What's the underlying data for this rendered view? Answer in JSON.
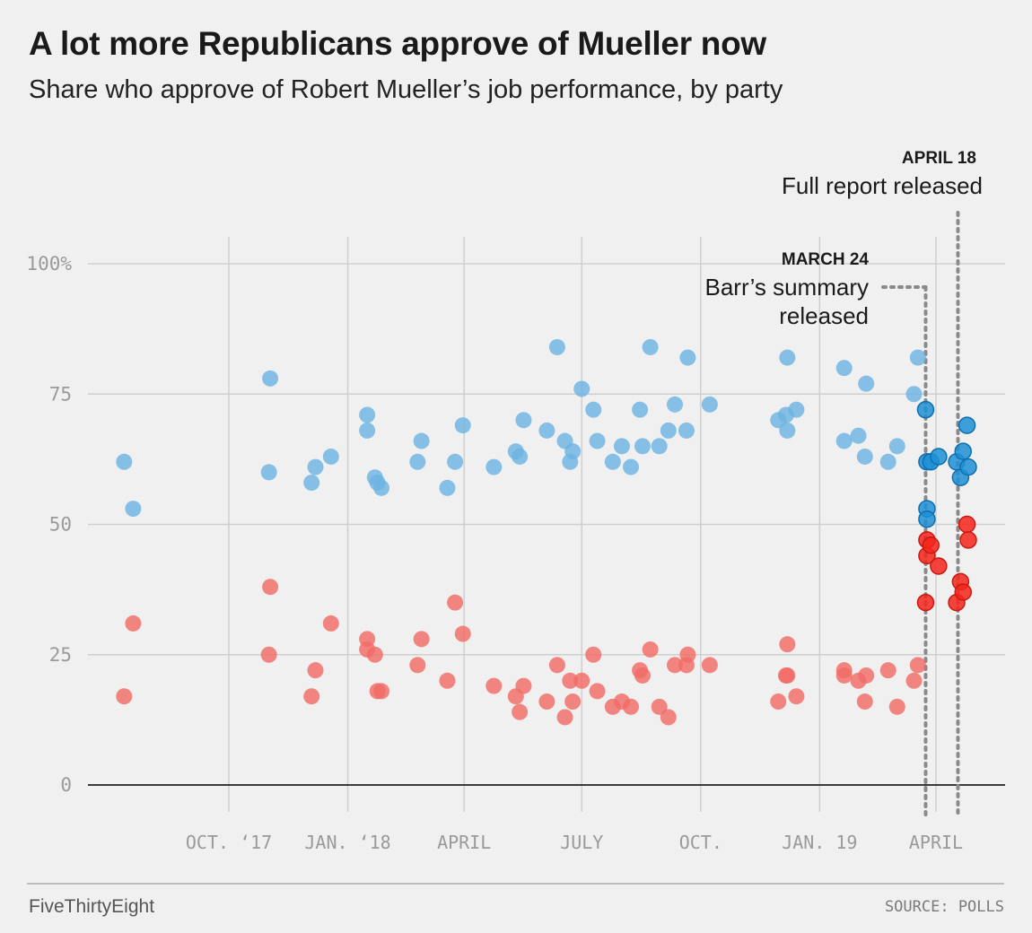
{
  "title": "A lot more Republicans approve of Mueller now",
  "subtitle": "Share who approve of Robert Mueller’s job performance, by party",
  "footer": {
    "brand": "FiveThirtyEight",
    "source": "SOURCE: POLLS"
  },
  "colors": {
    "dem_light": "#6cb3e2",
    "dem_dark": "#1d8fd6",
    "dem_dark_stroke": "#0f6fae",
    "rep_light": "#f26b66",
    "rep_dark": "#f5251b",
    "rep_dark_stroke": "#c81a12",
    "grid": "#cfcfcf",
    "baseline": "#222222",
    "annotation_line": "#8a8a8a"
  },
  "chart_data": {
    "type": "scatter",
    "x_unit": "date",
    "xlim": [
      "2017-06-20",
      "2019-05-15"
    ],
    "ylim": [
      0,
      100
    ],
    "y_ticks": [
      {
        "value": 0,
        "label": "0"
      },
      {
        "value": 25,
        "label": "25"
      },
      {
        "value": 50,
        "label": "50"
      },
      {
        "value": 75,
        "label": "75"
      },
      {
        "value": 100,
        "label": "100%"
      }
    ],
    "x_ticks": [
      {
        "date": "2017-10-01",
        "label": "OCT. ‘17"
      },
      {
        "date": "2018-01-01",
        "label": "JAN. ‘18"
      },
      {
        "date": "2018-04-01",
        "label": "APRIL"
      },
      {
        "date": "2018-07-01",
        "label": "JULY"
      },
      {
        "date": "2018-10-01",
        "label": "OCT."
      },
      {
        "date": "2019-01-01",
        "label": "JAN. 19"
      },
      {
        "date": "2019-04-01",
        "label": "APRIL"
      }
    ],
    "grid": true,
    "annotations": [
      {
        "date": "2019-03-24",
        "label_date": "MARCH 24",
        "label_lines": [
          "Barr’s summary",
          "released"
        ]
      },
      {
        "date": "2019-04-18",
        "label_date": "APRIL 18",
        "label_lines": [
          "Full report released"
        ]
      }
    ],
    "series": [
      {
        "party": "dem",
        "shade": "light",
        "points": [
          [
            "2017-07-12",
            62
          ],
          [
            "2017-07-19",
            53
          ],
          [
            "2017-11-01",
            60
          ],
          [
            "2017-11-02",
            78
          ],
          [
            "2017-12-04",
            58
          ],
          [
            "2017-12-07",
            61
          ],
          [
            "2017-12-19",
            63
          ],
          [
            "2018-01-16",
            71
          ],
          [
            "2018-01-16",
            68
          ],
          [
            "2018-01-22",
            59
          ],
          [
            "2018-01-24",
            58
          ],
          [
            "2018-01-27",
            57
          ],
          [
            "2018-02-24",
            62
          ],
          [
            "2018-02-27",
            66
          ],
          [
            "2018-03-19",
            57
          ],
          [
            "2018-03-25",
            62
          ],
          [
            "2018-03-31",
            69
          ],
          [
            "2018-04-24",
            61
          ],
          [
            "2018-05-11",
            64
          ],
          [
            "2018-05-14",
            63
          ],
          [
            "2018-05-17",
            70
          ],
          [
            "2018-06-04",
            68
          ],
          [
            "2018-06-12",
            84
          ],
          [
            "2018-06-18",
            66
          ],
          [
            "2018-06-22",
            62
          ],
          [
            "2018-06-24",
            64
          ],
          [
            "2018-07-01",
            76
          ],
          [
            "2018-07-10",
            72
          ],
          [
            "2018-07-13",
            66
          ],
          [
            "2018-07-25",
            62
          ],
          [
            "2018-08-01",
            65
          ],
          [
            "2018-08-08",
            61
          ],
          [
            "2018-08-15",
            72
          ],
          [
            "2018-08-17",
            65
          ],
          [
            "2018-08-23",
            84
          ],
          [
            "2018-08-30",
            65
          ],
          [
            "2018-09-06",
            68
          ],
          [
            "2018-09-11",
            73
          ],
          [
            "2018-09-20",
            68
          ],
          [
            "2018-09-21",
            82
          ],
          [
            "2018-10-08",
            73
          ],
          [
            "2018-11-30",
            70
          ],
          [
            "2018-12-06",
            71
          ],
          [
            "2018-12-07",
            82
          ],
          [
            "2018-12-07",
            68
          ],
          [
            "2018-12-14",
            72
          ],
          [
            "2019-01-20",
            80
          ],
          [
            "2019-01-20",
            66
          ],
          [
            "2019-01-31",
            67
          ],
          [
            "2019-02-05",
            63
          ],
          [
            "2019-02-06",
            77
          ],
          [
            "2019-02-23",
            62
          ],
          [
            "2019-03-02",
            65
          ],
          [
            "2019-03-15",
            75
          ],
          [
            "2019-03-18",
            82
          ]
        ]
      },
      {
        "party": "dem",
        "shade": "dark",
        "points": [
          [
            "2019-03-24",
            72
          ],
          [
            "2019-03-25",
            62
          ],
          [
            "2019-03-25",
            53
          ],
          [
            "2019-03-25",
            51
          ],
          [
            "2019-03-28",
            62
          ],
          [
            "2019-04-03",
            63
          ],
          [
            "2019-04-17",
            62
          ],
          [
            "2019-04-20",
            59
          ],
          [
            "2019-04-22",
            64
          ],
          [
            "2019-04-25",
            69
          ],
          [
            "2019-04-26",
            61
          ]
        ]
      },
      {
        "party": "rep",
        "shade": "light",
        "points": [
          [
            "2017-07-12",
            17
          ],
          [
            "2017-07-19",
            31
          ],
          [
            "2017-11-01",
            25
          ],
          [
            "2017-11-02",
            38
          ],
          [
            "2017-12-04",
            17
          ],
          [
            "2017-12-07",
            22
          ],
          [
            "2017-12-19",
            31
          ],
          [
            "2018-01-16",
            28
          ],
          [
            "2018-01-16",
            26
          ],
          [
            "2018-01-22",
            25
          ],
          [
            "2018-01-24",
            18
          ],
          [
            "2018-01-27",
            18
          ],
          [
            "2018-02-24",
            23
          ],
          [
            "2018-02-27",
            28
          ],
          [
            "2018-03-19",
            20
          ],
          [
            "2018-03-25",
            35
          ],
          [
            "2018-03-31",
            29
          ],
          [
            "2018-04-24",
            19
          ],
          [
            "2018-05-11",
            17
          ],
          [
            "2018-05-14",
            14
          ],
          [
            "2018-05-17",
            19
          ],
          [
            "2018-06-04",
            16
          ],
          [
            "2018-06-12",
            23
          ],
          [
            "2018-06-18",
            13
          ],
          [
            "2018-06-22",
            20
          ],
          [
            "2018-06-24",
            16
          ],
          [
            "2018-07-01",
            20
          ],
          [
            "2018-07-10",
            25
          ],
          [
            "2018-07-13",
            18
          ],
          [
            "2018-07-25",
            15
          ],
          [
            "2018-08-01",
            16
          ],
          [
            "2018-08-08",
            15
          ],
          [
            "2018-08-15",
            22
          ],
          [
            "2018-08-17",
            21
          ],
          [
            "2018-08-23",
            26
          ],
          [
            "2018-08-30",
            15
          ],
          [
            "2018-09-06",
            13
          ],
          [
            "2018-09-11",
            23
          ],
          [
            "2018-09-20",
            23
          ],
          [
            "2018-09-21",
            25
          ],
          [
            "2018-10-08",
            23
          ],
          [
            "2018-11-30",
            16
          ],
          [
            "2018-12-06",
            21
          ],
          [
            "2018-12-07",
            27
          ],
          [
            "2018-12-07",
            21
          ],
          [
            "2018-12-14",
            17
          ],
          [
            "2019-01-20",
            22
          ],
          [
            "2019-01-20",
            21
          ],
          [
            "2019-01-31",
            20
          ],
          [
            "2019-02-05",
            16
          ],
          [
            "2019-02-06",
            21
          ],
          [
            "2019-02-23",
            22
          ],
          [
            "2019-03-02",
            15
          ],
          [
            "2019-03-15",
            20
          ],
          [
            "2019-03-18",
            23
          ]
        ]
      },
      {
        "party": "rep",
        "shade": "dark",
        "points": [
          [
            "2019-03-24",
            35
          ],
          [
            "2019-03-25",
            47
          ],
          [
            "2019-03-25",
            44
          ],
          [
            "2019-03-28",
            46
          ],
          [
            "2019-04-03",
            42
          ],
          [
            "2019-04-17",
            35
          ],
          [
            "2019-04-20",
            39
          ],
          [
            "2019-04-22",
            37
          ],
          [
            "2019-04-25",
            50
          ],
          [
            "2019-04-26",
            47
          ]
        ]
      }
    ]
  }
}
